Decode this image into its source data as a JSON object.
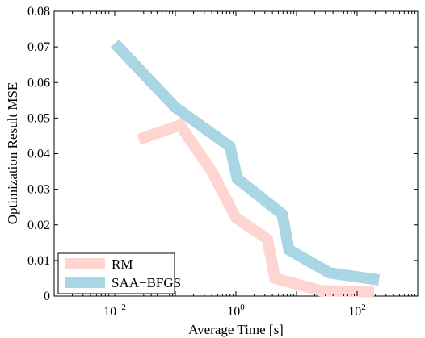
{
  "chart_data": {
    "type": "line",
    "xscale": "log",
    "xlim": [
      0.001,
      1000
    ],
    "ylim": [
      0,
      0.08
    ],
    "xlabel": "Average Time [s]",
    "ylabel": "Optimization Result MSE",
    "yticks": [
      "0",
      "0.01",
      "0.02",
      "0.03",
      "0.04",
      "0.05",
      "0.06",
      "0.07",
      "0.08"
    ],
    "xticks": [
      {
        "value": 0.01,
        "base": "10",
        "exp": "−2"
      },
      {
        "value": 1,
        "base": "10",
        "exp": "0"
      },
      {
        "value": 100,
        "base": "10",
        "exp": "2"
      }
    ],
    "grid": false,
    "legend_position": "bottom-left",
    "series": [
      {
        "name": "RM",
        "color": "#ffd5d2",
        "x": [
          0.025,
          0.12,
          0.4,
          1.0,
          3.3,
          4.4,
          25,
          190
        ],
        "y": [
          0.044,
          0.048,
          0.035,
          0.022,
          0.016,
          0.005,
          0.0015,
          0.0012
        ]
      },
      {
        "name": "SAA−BFGS",
        "color": "#a9d6e5",
        "x": [
          0.01,
          0.1,
          0.8,
          1.05,
          5.8,
          7.5,
          35,
          230
        ],
        "y": [
          0.071,
          0.053,
          0.042,
          0.033,
          0.023,
          0.013,
          0.0065,
          0.0045
        ]
      }
    ]
  }
}
